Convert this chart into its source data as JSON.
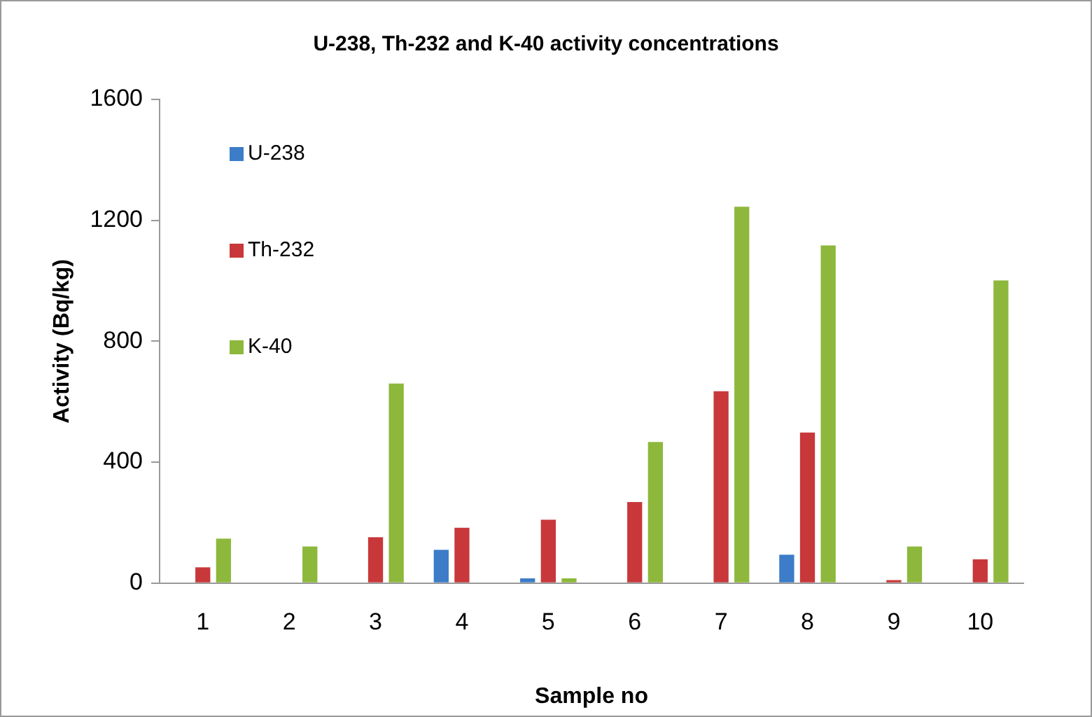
{
  "chart_data": {
    "type": "bar",
    "title": "U-238, Th-232 and K-40 activity concentrations",
    "xlabel": "Sample no",
    "ylabel": "Activity (Bq/kg)",
    "categories": [
      "1",
      "2",
      "3",
      "4",
      "5",
      "6",
      "7",
      "8",
      "9",
      "10"
    ],
    "series": [
      {
        "name": "U-238",
        "color": "#3c7cc8",
        "values": [
          null,
          null,
          null,
          110,
          16,
          null,
          null,
          94,
          null,
          null
        ]
      },
      {
        "name": "Th-232",
        "color": "#c8383a",
        "values": [
          52,
          null,
          152,
          183,
          210,
          268,
          635,
          498,
          10,
          79
        ]
      },
      {
        "name": "K-40",
        "color": "#8db83c",
        "values": [
          147,
          121,
          660,
          null,
          16,
          467,
          1245,
          1117,
          121,
          1001
        ]
      }
    ],
    "ylim": [
      0,
      1600
    ],
    "yticks": [
      0,
      400,
      800,
      1200,
      1600
    ],
    "grid": false,
    "legend": "top left"
  }
}
